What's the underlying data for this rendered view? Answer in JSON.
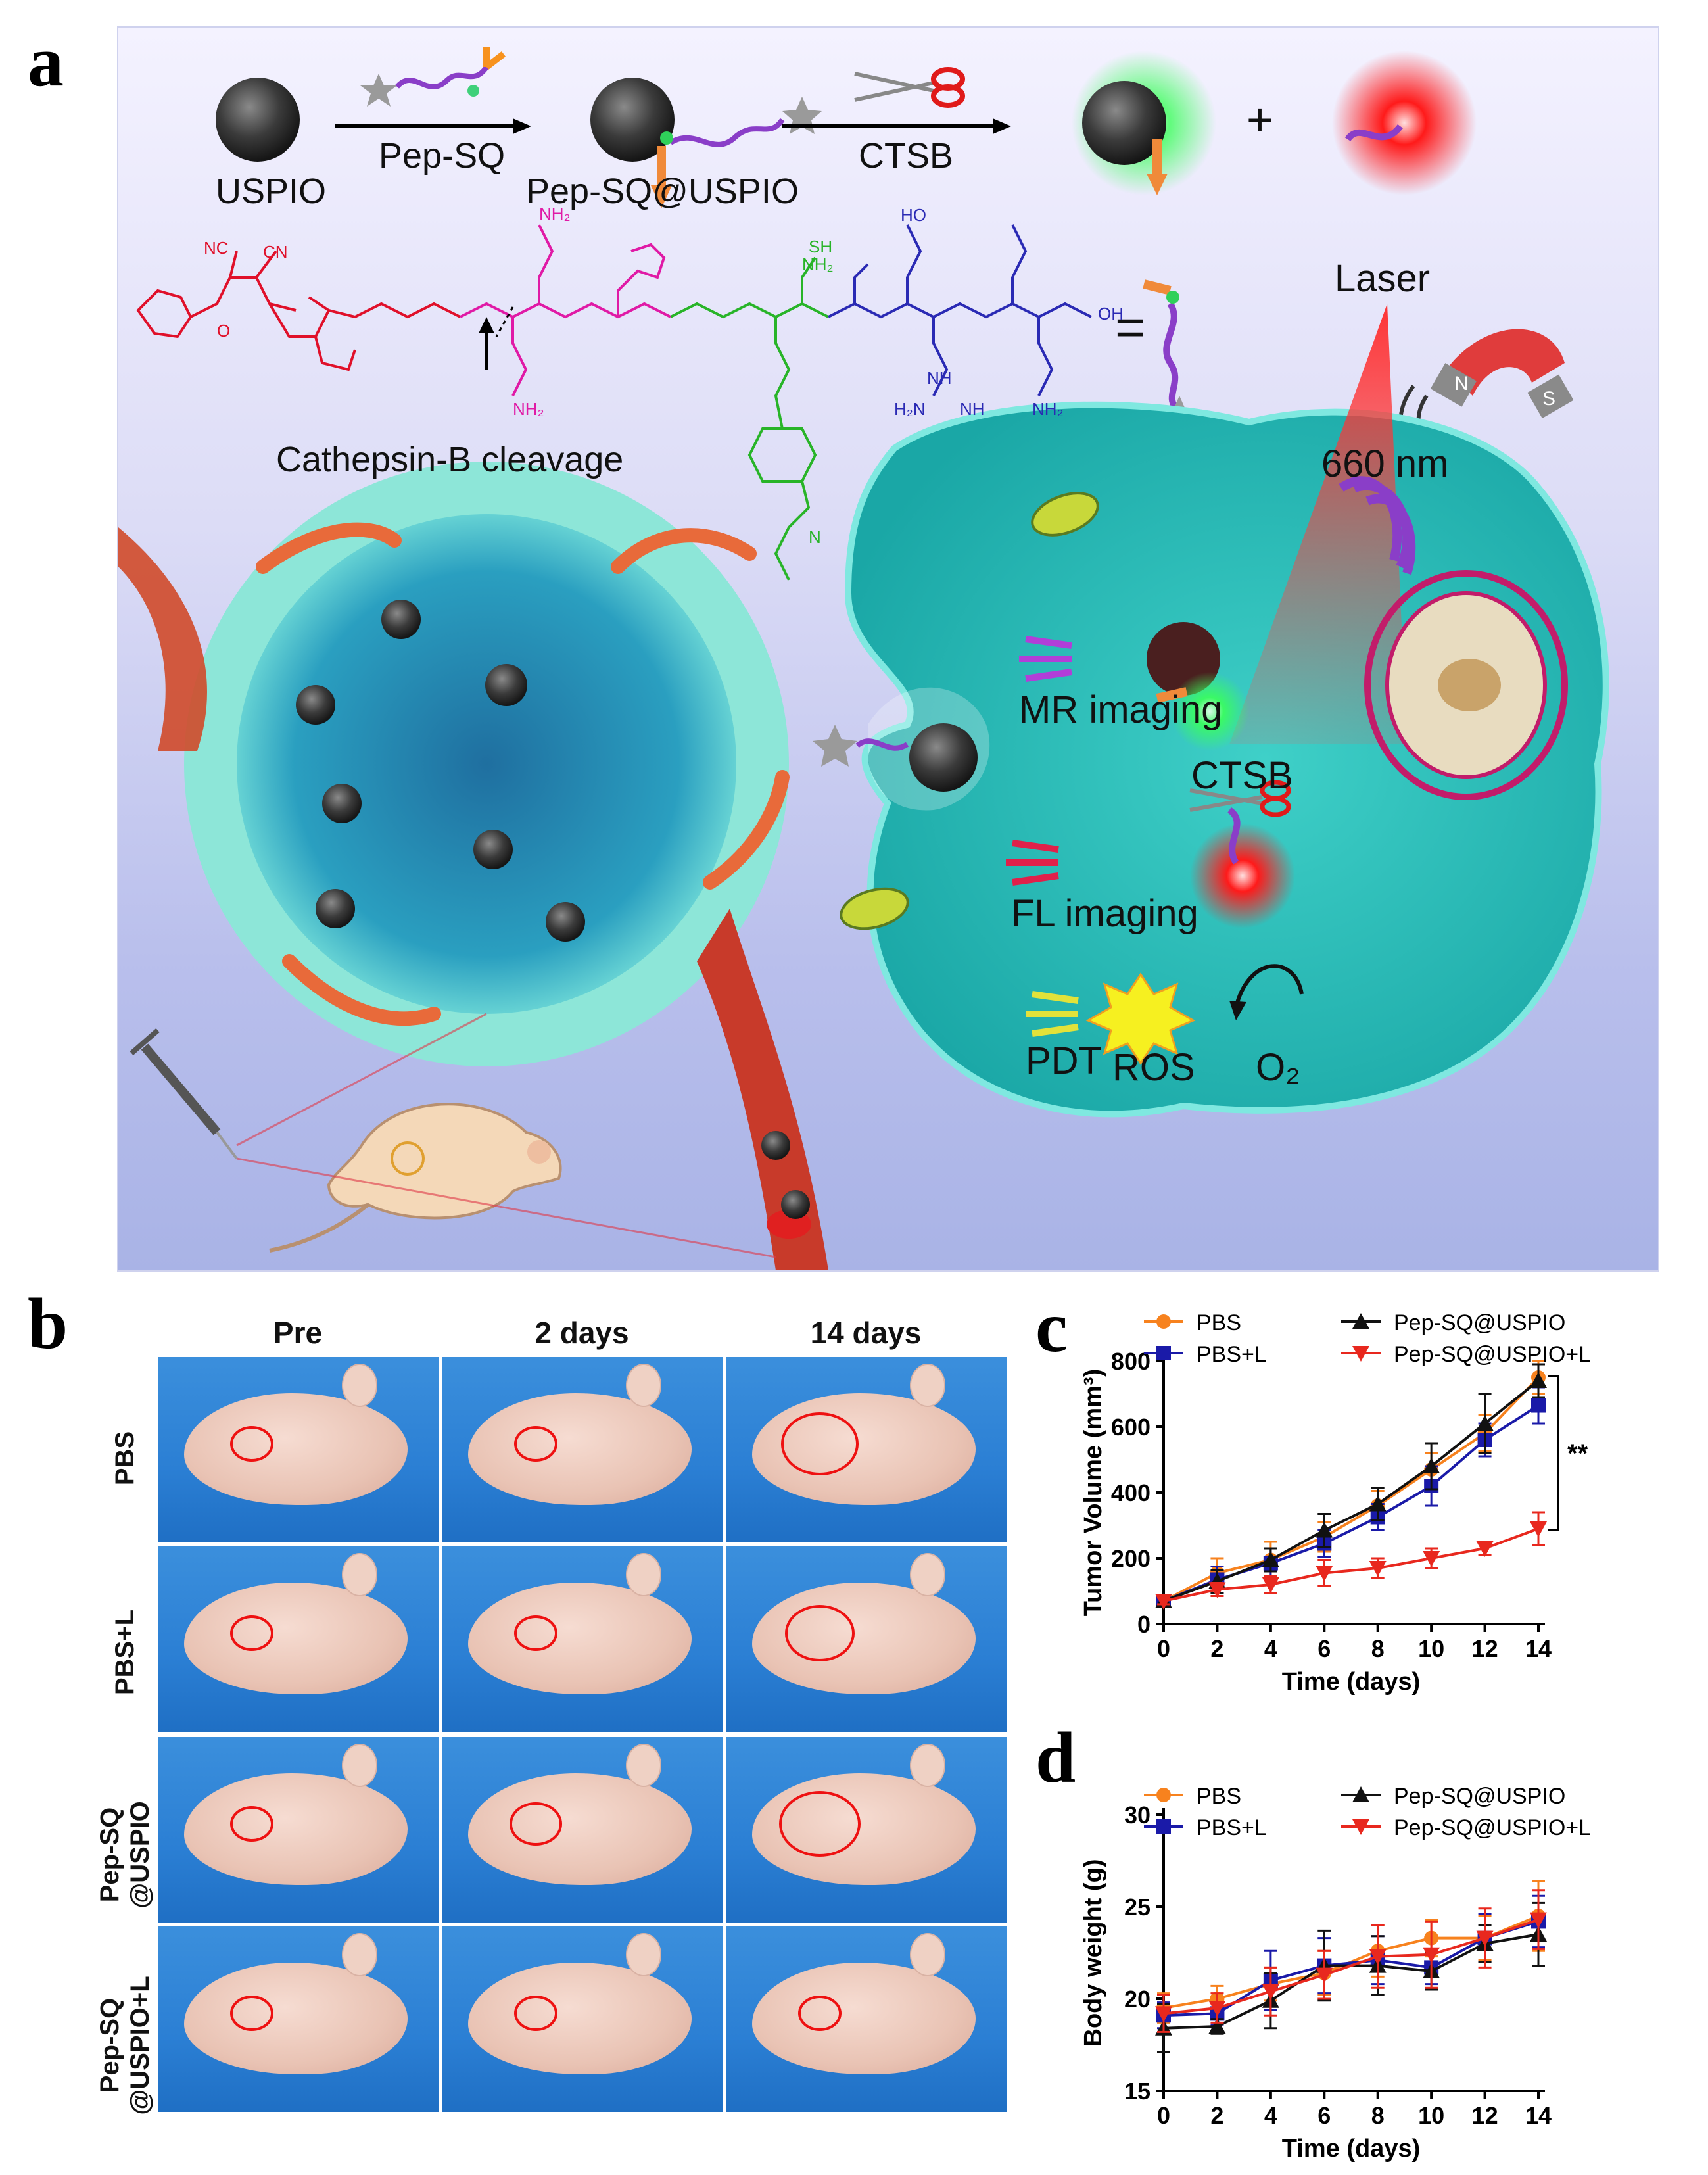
{
  "panel_labels": {
    "a": "a",
    "b": "b",
    "c": "c",
    "d": "d"
  },
  "scheme": {
    "uspio": "USPIO",
    "pep_sq": "Pep-SQ",
    "pep_sq_uspio": "Pep-SQ@USPIO",
    "ctsb_top": "CTSB",
    "plus": "+",
    "equals": "=",
    "laser": "Laser",
    "wavelength": "660 nm",
    "cleavage": "Cathepsin-B cleavage",
    "mr_imaging": "MR imaging",
    "ctsb_cell": "CTSB",
    "fl_imaging": "FL imaging",
    "pdt": "PDT",
    "ros": "ROS",
    "o2": "O₂",
    "magnet_n": "N",
    "magnet_s": "S",
    "chem_labels": [
      "NC",
      "CN",
      "NH₂",
      "SH",
      "HO",
      "O",
      "OH",
      "NH₂",
      "NH₂",
      "H₂N",
      "NH",
      "NH",
      "NH₂",
      "N"
    ]
  },
  "photos": {
    "columns": [
      "Pre",
      "2 days",
      "14 days"
    ],
    "rows": [
      "PBS",
      "PBS+L",
      "Pep-SQ\n@USPIO",
      "Pep-SQ\n@USPIO+L"
    ]
  },
  "colors": {
    "PBS": "#f7821e",
    "PBS+L": "#1a1aa8",
    "Pep-SQ@USPIO": "#111111",
    "Pep-SQ@USPIO+L": "#e8281e"
  },
  "chart_data": [
    {
      "type": "line",
      "id": "c",
      "xlabel": "Time (days)",
      "ylabel": "Tumor Volume (mm³)",
      "x": [
        0,
        2,
        4,
        6,
        8,
        10,
        12,
        14
      ],
      "xlim": [
        0,
        14
      ],
      "ylim": [
        0,
        800
      ],
      "xticks": [
        0,
        2,
        4,
        6,
        8,
        10,
        12,
        14
      ],
      "yticks": [
        0,
        200,
        400,
        600,
        800
      ],
      "significance": "**",
      "series": [
        {
          "name": "PBS",
          "marker": "circle",
          "values": [
            70,
            155,
            195,
            265,
            360,
            470,
            580,
            750
          ],
          "errors": [
            10,
            45,
            55,
            45,
            45,
            50,
            55,
            50
          ]
        },
        {
          "name": "PBS+L",
          "marker": "square",
          "values": [
            70,
            135,
            185,
            245,
            325,
            420,
            560,
            665
          ],
          "errors": [
            10,
            40,
            45,
            40,
            40,
            60,
            50,
            55
          ]
        },
        {
          "name": "Pep-SQ@USPIO",
          "marker": "triangle-up",
          "values": [
            70,
            130,
            195,
            285,
            365,
            480,
            610,
            740
          ],
          "errors": [
            10,
            35,
            35,
            50,
            50,
            70,
            90,
            50
          ]
        },
        {
          "name": "Pep-SQ@USPIO+L",
          "marker": "triangle-down",
          "values": [
            70,
            105,
            120,
            155,
            170,
            200,
            230,
            290
          ],
          "errors": [
            10,
            20,
            25,
            40,
            30,
            30,
            20,
            50
          ]
        }
      ]
    },
    {
      "type": "line",
      "id": "d",
      "xlabel": "Time (days)",
      "ylabel": "Body weight (g)",
      "x": [
        0,
        2,
        4,
        6,
        8,
        10,
        12,
        14
      ],
      "xlim": [
        0,
        14
      ],
      "ylim": [
        15,
        30
      ],
      "xticks": [
        0,
        2,
        4,
        6,
        8,
        10,
        12,
        14
      ],
      "yticks": [
        15,
        20,
        25,
        30
      ],
      "series": [
        {
          "name": "PBS",
          "marker": "circle",
          "values": [
            19.5,
            20.0,
            20.8,
            21.4,
            22.6,
            23.3,
            23.3,
            24.5
          ],
          "errors": [
            0.8,
            0.7,
            0.9,
            1.2,
            1.4,
            1.0,
            1.2,
            1.9
          ]
        },
        {
          "name": "PBS+L",
          "marker": "square",
          "values": [
            19.1,
            19.2,
            21.0,
            21.8,
            22.1,
            21.7,
            23.3,
            24.2
          ],
          "errors": [
            0.7,
            0.6,
            1.6,
            1.5,
            1.3,
            0.9,
            1.3,
            1.4
          ]
        },
        {
          "name": "Pep-SQ@USPIO",
          "marker": "triangle-up",
          "values": [
            18.4,
            18.5,
            19.9,
            21.8,
            21.8,
            21.5,
            23.0,
            23.5
          ],
          "errors": [
            1.3,
            0.4,
            1.5,
            1.9,
            1.6,
            1.0,
            1.0,
            1.7
          ]
        },
        {
          "name": "Pep-SQ@USPIO+L",
          "marker": "triangle-down",
          "values": [
            19.2,
            19.5,
            20.4,
            21.3,
            22.3,
            22.4,
            23.3,
            24.3
          ],
          "errors": [
            1.0,
            0.8,
            1.3,
            1.3,
            1.7,
            1.8,
            1.6,
            1.6
          ]
        }
      ]
    }
  ]
}
